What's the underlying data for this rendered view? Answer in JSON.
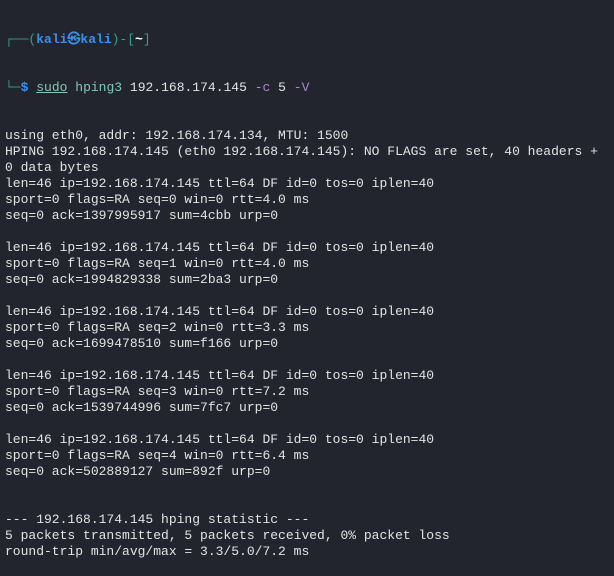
{
  "prompt": {
    "frame_top": "┌──(",
    "user_host": "kali㉿kali",
    "mid": ")-[",
    "cwd": "~",
    "end": "]",
    "frame_bottom": "└─",
    "symbol": "$",
    "command": {
      "sudo": "sudo",
      "program": "hping3",
      "target": "192.168.174.145",
      "flag_c": "-c",
      "count": "5",
      "flag_v": "-V"
    }
  },
  "colors": {
    "background": "#23252e",
    "text": "#e3e3e3",
    "prompt_frame": "#2aa38e",
    "prompt_user": "#3b8eea",
    "command": "#7fc8b8",
    "option": "#a687d4"
  },
  "output": [
    "using eth0, addr: 192.168.174.134, MTU: 1500",
    "HPING 192.168.174.145 (eth0 192.168.174.145): NO FLAGS are set, 40 headers +",
    "0 data bytes",
    "len=46 ip=192.168.174.145 ttl=64 DF id=0 tos=0 iplen=40",
    "sport=0 flags=RA seq=0 win=0 rtt=4.0 ms",
    "seq=0 ack=1397995917 sum=4cbb urp=0",
    "",
    "len=46 ip=192.168.174.145 ttl=64 DF id=0 tos=0 iplen=40",
    "sport=0 flags=RA seq=1 win=0 rtt=4.0 ms",
    "seq=0 ack=1994829338 sum=2ba3 urp=0",
    "",
    "len=46 ip=192.168.174.145 ttl=64 DF id=0 tos=0 iplen=40",
    "sport=0 flags=RA seq=2 win=0 rtt=3.3 ms",
    "seq=0 ack=1699478510 sum=f166 urp=0",
    "",
    "len=46 ip=192.168.174.145 ttl=64 DF id=0 tos=0 iplen=40",
    "sport=0 flags=RA seq=3 win=0 rtt=7.2 ms",
    "seq=0 ack=1539744996 sum=7fc7 urp=0",
    "",
    "len=46 ip=192.168.174.145 ttl=64 DF id=0 tos=0 iplen=40",
    "sport=0 flags=RA seq=4 win=0 rtt=6.4 ms",
    "seq=0 ack=502889127 sum=892f urp=0",
    "",
    "",
    "--- 192.168.174.145 hping statistic ---",
    "5 packets transmitted, 5 packets received, 0% packet loss",
    "round-trip min/avg/max = 3.3/5.0/7.2 ms"
  ]
}
